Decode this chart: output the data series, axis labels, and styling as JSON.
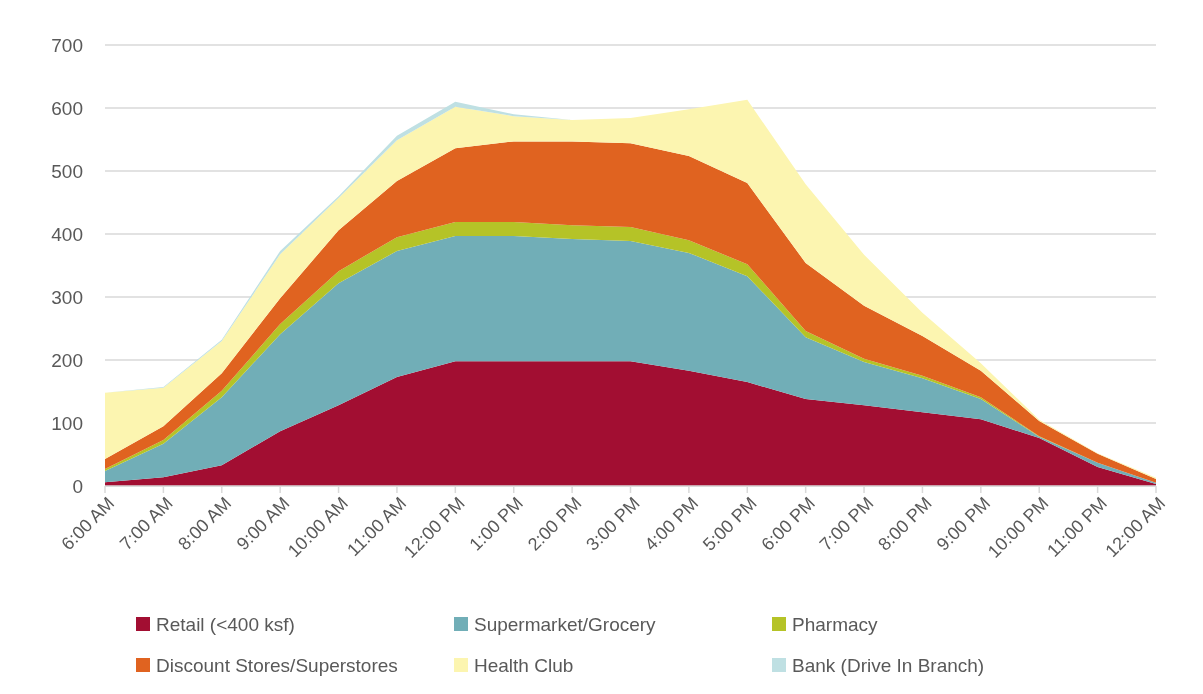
{
  "chart_data": {
    "type": "area",
    "stacked": true,
    "categories": [
      "6:00 AM",
      "7:00 AM",
      "8:00 AM",
      "9:00 AM",
      "10:00 AM",
      "11:00 AM",
      "12:00 PM",
      "1:00 PM",
      "2:00 PM",
      "3:00 PM",
      "4:00 PM",
      "5:00 PM",
      "6:00 PM",
      "7:00 PM",
      "8:00 PM",
      "9:00 PM",
      "10:00 PM",
      "11:00 PM",
      "12:00 AM"
    ],
    "series": [
      {
        "name": "Retail (<400 ksf)",
        "color": "#a20e32",
        "values": [
          6,
          14,
          33,
          87,
          128,
          173,
          198,
          198,
          198,
          198,
          183,
          165,
          138,
          128,
          117,
          106,
          76,
          30,
          3
        ]
      },
      {
        "name": "Supermarket/Grocery",
        "color": "#71aeb7",
        "values": [
          18,
          53,
          108,
          154,
          194,
          200,
          199,
          199,
          194,
          191,
          187,
          168,
          98,
          69,
          54,
          32,
          2,
          7,
          2
        ]
      },
      {
        "name": "Pharmacy",
        "color": "#b5c327",
        "values": [
          3,
          6,
          10,
          16,
          19,
          22,
          22,
          22,
          22,
          22,
          20,
          19,
          10,
          5,
          4,
          3,
          1,
          0,
          0
        ]
      },
      {
        "name": "Discount Stores/Superstores",
        "color": "#e06320",
        "values": [
          16,
          22,
          28,
          41,
          65,
          89,
          117,
          128,
          133,
          133,
          134,
          129,
          108,
          84,
          63,
          42,
          24,
          14,
          6
        ]
      },
      {
        "name": "Health Club",
        "color": "#fcf5b0",
        "values": [
          105,
          61,
          51,
          70,
          51,
          65,
          66,
          40,
          34,
          40,
          74,
          132,
          125,
          81,
          37,
          12,
          2,
          1,
          2
        ]
      },
      {
        "name": "Bank (Drive In Branch)",
        "color": "#bfe0e3",
        "values": [
          0,
          1,
          2,
          5,
          3,
          7,
          8,
          3,
          0,
          0,
          0,
          0,
          0,
          0,
          0,
          0,
          0,
          0,
          0
        ]
      }
    ],
    "ylim": [
      0,
      700
    ],
    "yticks": [
      0,
      100,
      200,
      300,
      400,
      500,
      600,
      700
    ],
    "grid": "y",
    "legend": "bottom"
  }
}
